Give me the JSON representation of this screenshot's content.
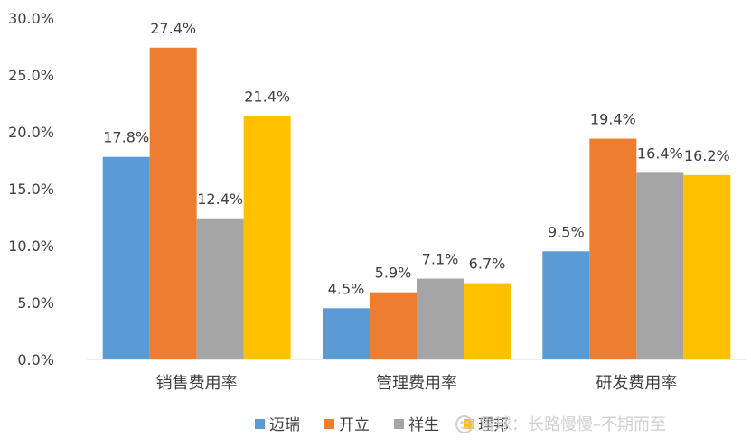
{
  "chart_data": {
    "type": "bar",
    "categories": [
      "销售费用率",
      "管理费用率",
      "研发费用率"
    ],
    "series": [
      {
        "name": "迈瑞",
        "color": "#5B9BD5",
        "values": [
          17.8,
          4.5,
          9.5
        ],
        "labels": [
          "17.8%",
          "4.5%",
          "9.5%"
        ]
      },
      {
        "name": "开立",
        "color": "#ED7D31",
        "values": [
          27.4,
          5.9,
          19.4
        ],
        "labels": [
          "27.4%",
          "5.9%",
          "19.4%"
        ]
      },
      {
        "name": "祥生",
        "color": "#A5A5A5",
        "values": [
          12.4,
          7.1,
          16.4
        ],
        "labels": [
          "12.4%",
          "7.1%",
          "16.4%"
        ]
      },
      {
        "name": "理邦",
        "color": "#FFC000",
        "values": [
          21.4,
          6.7,
          16.2
        ],
        "labels": [
          "21.4%",
          "6.7%",
          "16.2%"
        ]
      }
    ],
    "y_ticks": [
      "0.0%",
      "5.0%",
      "10.0%",
      "15.0%",
      "20.0%",
      "25.0%",
      "30.0%"
    ],
    "ylim": [
      0,
      30
    ],
    "grid": false,
    "legend_position": "bottom"
  },
  "watermark": {
    "text": "雪球：长路慢慢–不期而至"
  }
}
